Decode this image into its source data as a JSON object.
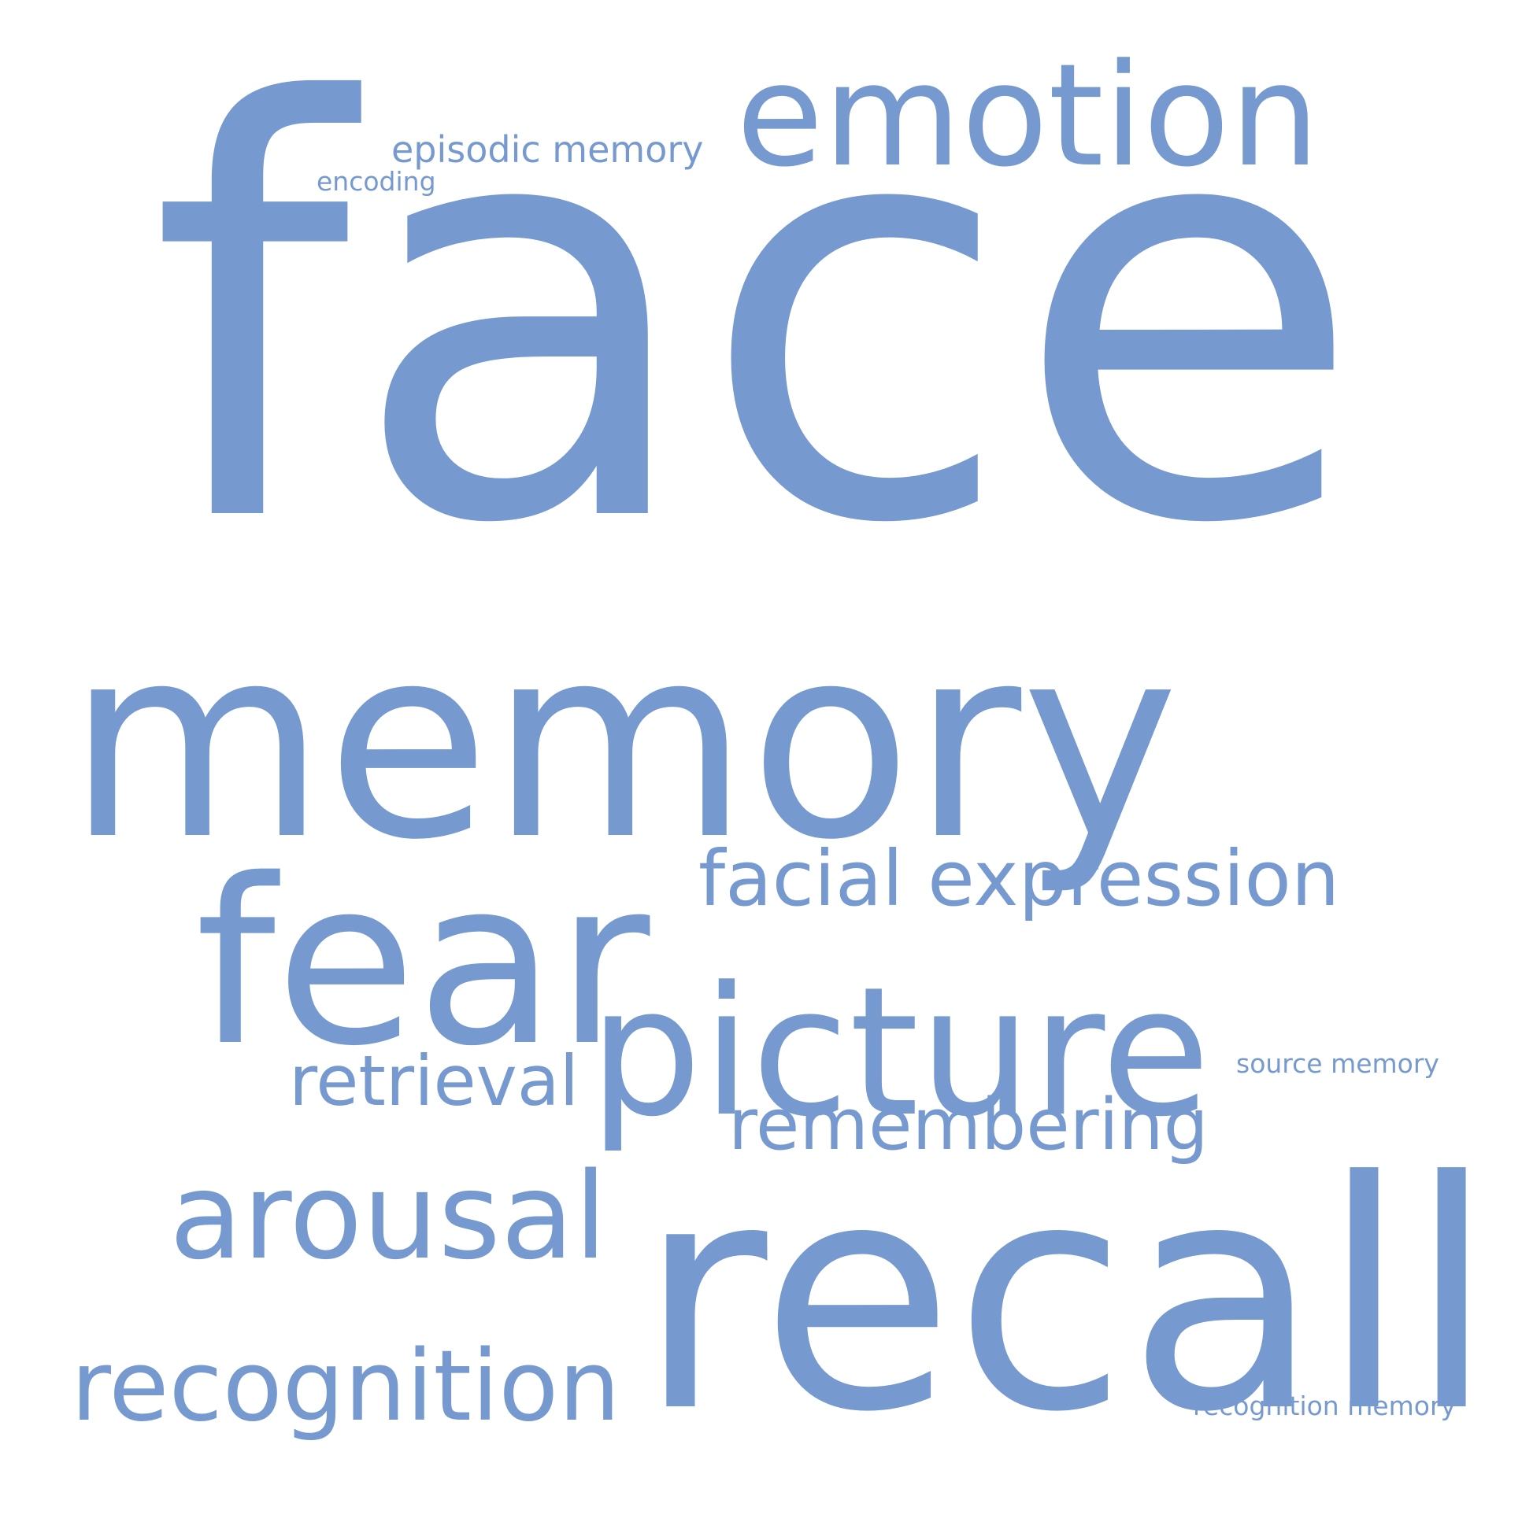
{
  "word_cloud": {
    "background_color": "#ffffff",
    "text_color": "#7699cf",
    "words": [
      {
        "id": "face",
        "text": "face"
      },
      {
        "id": "memory",
        "text": "memory"
      },
      {
        "id": "recall",
        "text": "recall"
      },
      {
        "id": "picture",
        "text": "picture"
      },
      {
        "id": "fear",
        "text": "fear"
      },
      {
        "id": "emotion",
        "text": "emotion"
      },
      {
        "id": "arousal",
        "text": "arousal"
      },
      {
        "id": "recognition",
        "text": "recognition"
      },
      {
        "id": "facial-expression",
        "text": "facial expression"
      },
      {
        "id": "remembering",
        "text": "remembering"
      },
      {
        "id": "retrieval",
        "text": "retrieval"
      },
      {
        "id": "episodic-memory",
        "text": "episodic memory"
      },
      {
        "id": "encoding",
        "text": "encoding"
      },
      {
        "id": "source-memory",
        "text": "source memory"
      },
      {
        "id": "recognition-memory",
        "text": "recognition memory"
      }
    ]
  }
}
